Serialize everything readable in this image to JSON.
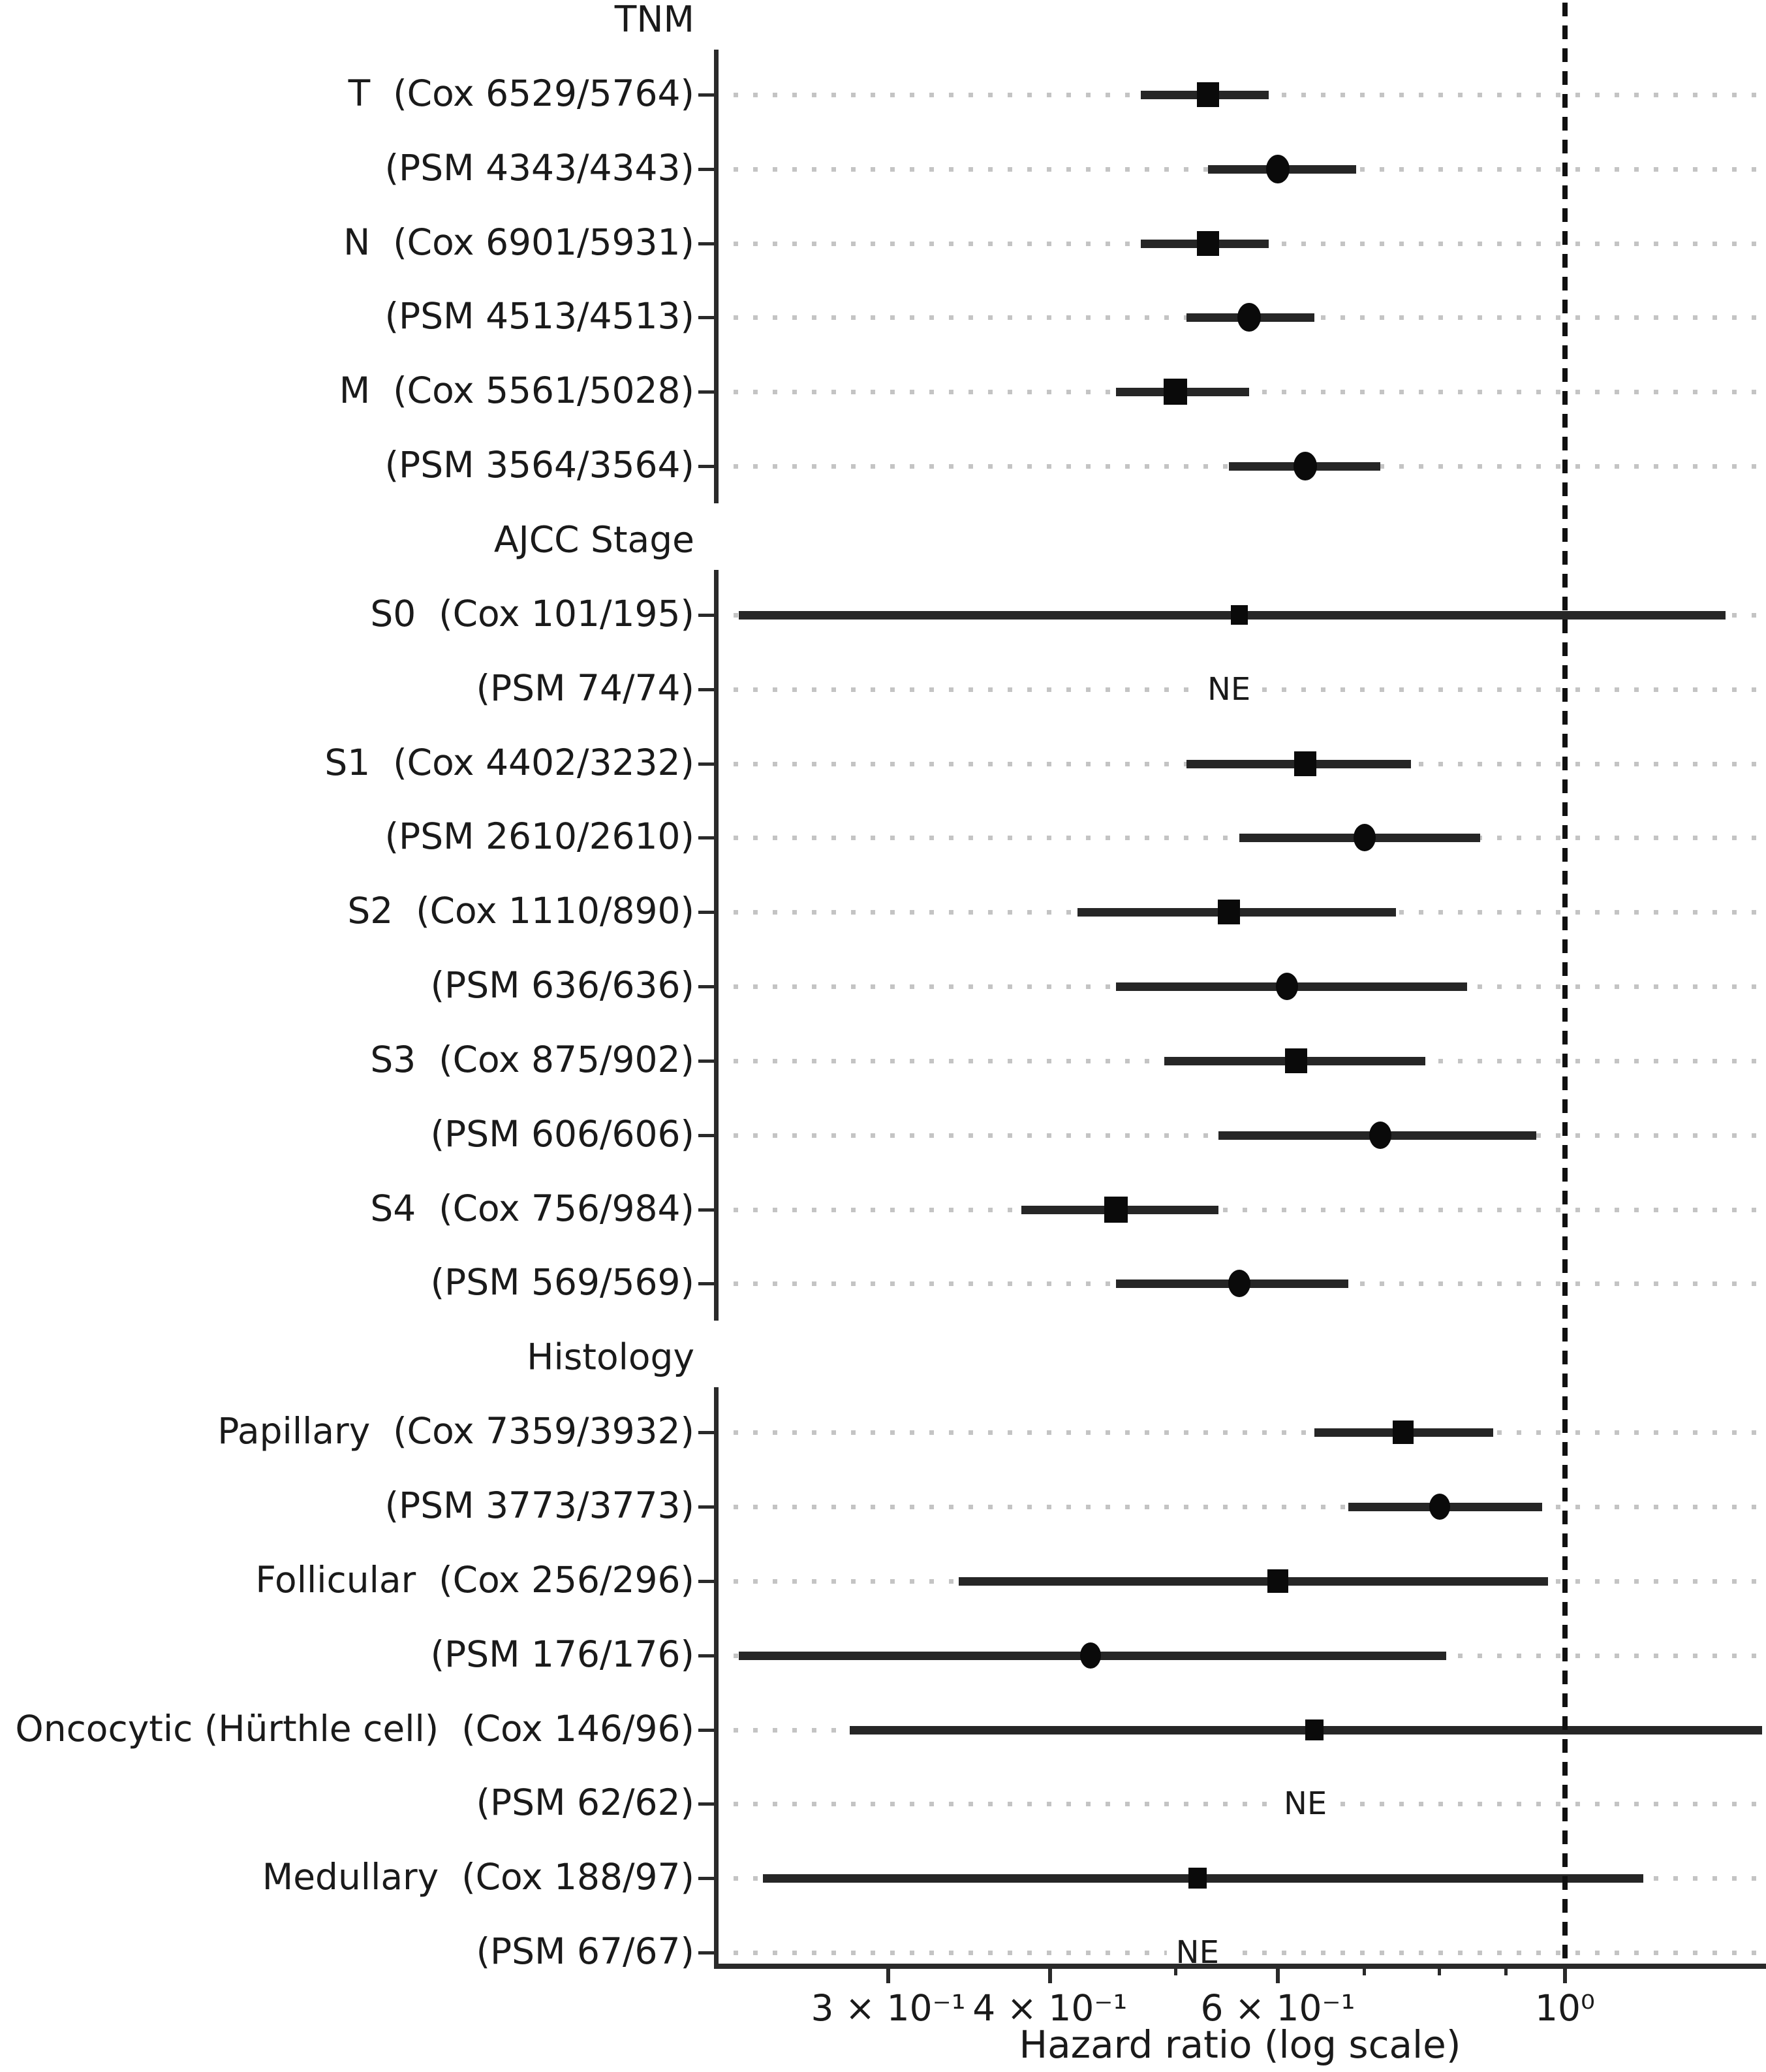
{
  "chart_data": {
    "type": "scatter",
    "subtype": "forest-plot",
    "orientation": "horizontal",
    "xlabel": "Hazard ratio (log scale)",
    "x_scale": "log",
    "xlim": [
      0.22,
      1.43
    ],
    "reference_line": 1.0,
    "x_major_ticks": [
      {
        "value": 0.3,
        "label": "3 × 10⁻¹"
      },
      {
        "value": 0.4,
        "label": "4 × 10⁻¹"
      },
      {
        "value": 0.6,
        "label": "6 × 10⁻¹"
      },
      {
        "value": 1.0,
        "label": "10⁰"
      }
    ],
    "x_minor_ticks": [
      0.5,
      0.7,
      0.8,
      0.9
    ],
    "ne_text": "NE",
    "grid": "dotted-horizontal-per-row",
    "colors": {
      "marker": "#0a0a0a",
      "ci_line": "#262626",
      "grid_dotted": "#c4c4c4",
      "reference_line": "#111111",
      "text": "#1a1a1a",
      "spine": "#2a2a2a"
    },
    "groups": [
      {
        "header": "TNM",
        "rows": [
          {
            "label": "T  (Cox 6529/5764)",
            "marker": "square",
            "estimate": 0.53,
            "ci_low": 0.47,
            "ci_high": 0.59,
            "size": 34
          },
          {
            "label": "(PSM 4343/4343)",
            "marker": "circle",
            "estimate": 0.6,
            "ci_low": 0.53,
            "ci_high": 0.69,
            "size": 36
          },
          {
            "label": "N  (Cox 6901/5931)",
            "marker": "square",
            "estimate": 0.53,
            "ci_low": 0.47,
            "ci_high": 0.59,
            "size": 34
          },
          {
            "label": "(PSM 4513/4513)",
            "marker": "circle",
            "estimate": 0.57,
            "ci_low": 0.51,
            "ci_high": 0.64,
            "size": 36
          },
          {
            "label": "M  (Cox 5561/5028)",
            "marker": "square",
            "estimate": 0.5,
            "ci_low": 0.45,
            "ci_high": 0.57,
            "size": 36
          },
          {
            "label": "(PSM 3564/3564)",
            "marker": "circle",
            "estimate": 0.63,
            "ci_low": 0.55,
            "ci_high": 0.72,
            "size": 36
          }
        ]
      },
      {
        "header": "AJCC Stage",
        "rows": [
          {
            "label": "S0  (Cox 101/195)",
            "marker": "square",
            "estimate": 0.56,
            "ci_low": 0.23,
            "ci_high": 1.33,
            "size": 26
          },
          {
            "label": "(PSM 74/74)",
            "marker": "circle",
            "ne": true,
            "ne_at": 0.55
          },
          {
            "label": "S1  (Cox 4402/3232)",
            "marker": "square",
            "estimate": 0.63,
            "ci_low": 0.51,
            "ci_high": 0.76,
            "size": 34
          },
          {
            "label": "(PSM 2610/2610)",
            "marker": "circle",
            "estimate": 0.7,
            "ci_low": 0.56,
            "ci_high": 0.86,
            "size": 34
          },
          {
            "label": "S2  (Cox 1110/890)",
            "marker": "square",
            "estimate": 0.55,
            "ci_low": 0.42,
            "ci_high": 0.74,
            "size": 34
          },
          {
            "label": "(PSM 636/636)",
            "marker": "circle",
            "estimate": 0.61,
            "ci_low": 0.45,
            "ci_high": 0.84,
            "size": 34
          },
          {
            "label": "S3  (Cox 875/902)",
            "marker": "square",
            "estimate": 0.62,
            "ci_low": 0.49,
            "ci_high": 0.78,
            "size": 34
          },
          {
            "label": "(PSM 606/606)",
            "marker": "circle",
            "estimate": 0.72,
            "ci_low": 0.54,
            "ci_high": 0.95,
            "size": 34
          },
          {
            "label": "S4  (Cox 756/984)",
            "marker": "square",
            "estimate": 0.45,
            "ci_low": 0.38,
            "ci_high": 0.54,
            "size": 36
          },
          {
            "label": "(PSM 569/569)",
            "marker": "circle",
            "estimate": 0.56,
            "ci_low": 0.45,
            "ci_high": 0.68,
            "size": 34
          }
        ]
      },
      {
        "header": "Histology",
        "rows": [
          {
            "label": "Papillary  (Cox 7359/3932)",
            "marker": "square",
            "estimate": 0.75,
            "ci_low": 0.64,
            "ci_high": 0.88,
            "size": 32
          },
          {
            "label": "(PSM 3773/3773)",
            "marker": "circle",
            "estimate": 0.8,
            "ci_low": 0.68,
            "ci_high": 0.96,
            "size": 32
          },
          {
            "label": "Follicular  (Cox 256/296)",
            "marker": "square",
            "estimate": 0.6,
            "ci_low": 0.34,
            "ci_high": 0.97,
            "size": 32
          },
          {
            "label": "(PSM 176/176)",
            "marker": "circle",
            "estimate": 0.43,
            "ci_low": 0.23,
            "ci_high": 0.81,
            "size": 32
          },
          {
            "label": "Oncocytic (Hürthle cell)  (Cox 146/96)",
            "marker": "square",
            "estimate": 0.64,
            "ci_low": 0.28,
            "ci_high": 1.42,
            "size": 28
          },
          {
            "label": "(PSM 62/62)",
            "marker": "circle",
            "ne": true,
            "ne_at": 0.63
          },
          {
            "label": "Medullary  (Cox 188/97)",
            "marker": "square",
            "estimate": 0.52,
            "ci_low": 0.24,
            "ci_high": 1.15,
            "size": 28
          },
          {
            "label": "(PSM 67/67)",
            "marker": "circle",
            "ne": true,
            "ne_at": 0.52
          }
        ]
      }
    ]
  }
}
